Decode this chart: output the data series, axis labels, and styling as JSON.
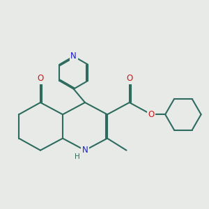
{
  "bg_color": "#e8eae8",
  "bond_color": "#2d6b5e",
  "bond_width": 1.5,
  "atom_colors": {
    "N": "#1a1acc",
    "O": "#cc1a1a",
    "C": "#2d6b5e"
  },
  "font_size": 8.5
}
